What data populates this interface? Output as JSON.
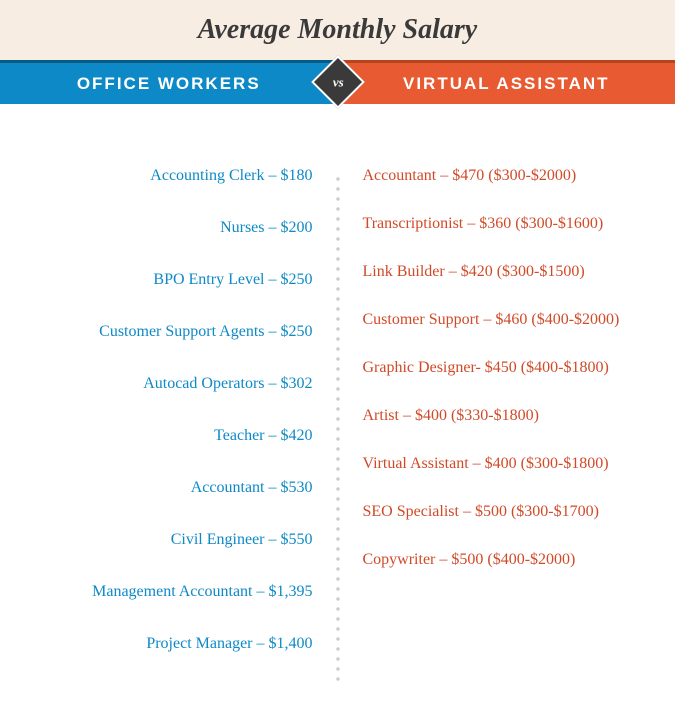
{
  "title": "Average Monthly Salary",
  "banner": {
    "left_label": "OFFICE WORKERS",
    "right_label": "VIRTUAL ASSISTANT",
    "vs_label": "vs"
  },
  "colors": {
    "header_bg": "#f7ede3",
    "left_bg": "#0d89c7",
    "right_bg": "#e85a32",
    "left_text": "#0d89c7",
    "right_text": "#d14a28",
    "vs_bg": "#3a3a3a"
  },
  "left_items": [
    "Accounting Clerk – $180",
    "Nurses – $200",
    "BPO Entry Level – $250",
    "Customer Support Agents – $250",
    "Autocad Operators – $302",
    "Teacher – $420",
    "Accountant – $530",
    "Civil Engineer – $550",
    "Management Accountant – $1,395",
    "Project Manager – $1,400"
  ],
  "right_items": [
    "Accountant – $470 ($300-$2000)",
    "Transcriptionist – $360 ($300-$1600)",
    "Link Builder – $420 ($300-$1500)",
    "Customer Support – $460 ($400-$2000)",
    "Graphic Designer- $450 ($400-$1800)",
    "Artist – $400 ($330-$1800)",
    "Virtual Assistant – $400 ($300-$1800)",
    "SEO Specialist – $500 ($300-$1700)",
    "Copywriter – $500 ($400-$2000)"
  ]
}
